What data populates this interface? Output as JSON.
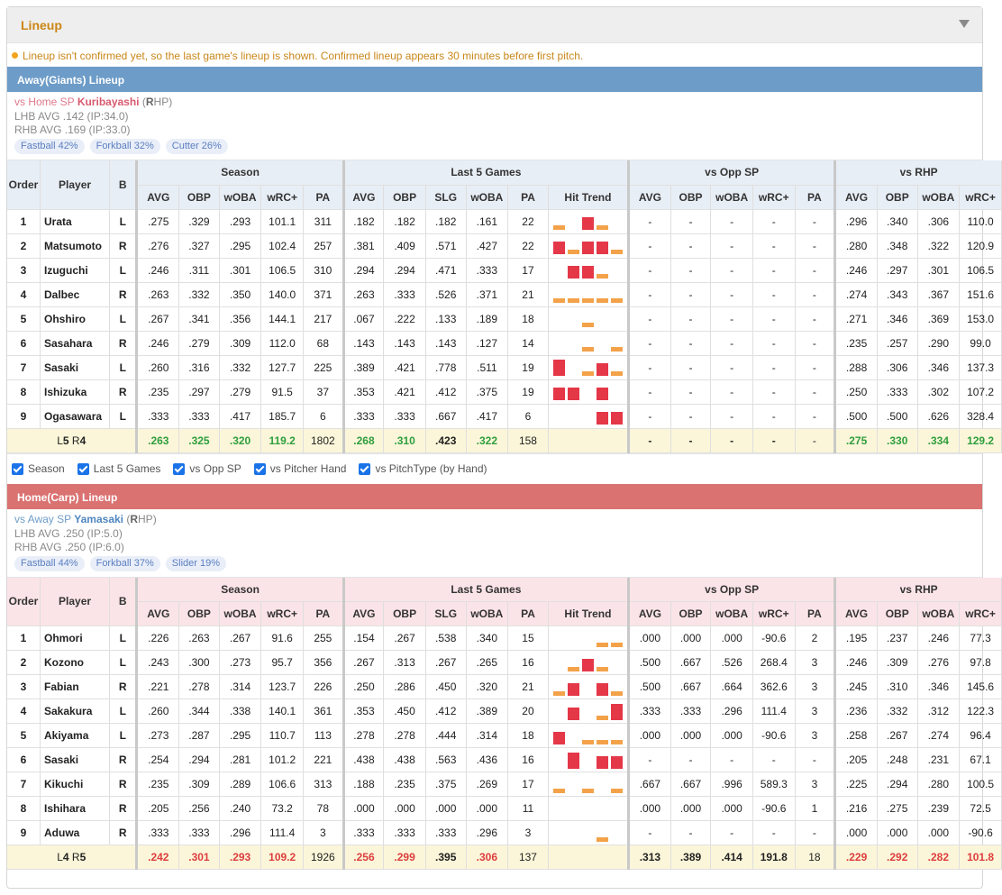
{
  "header": {
    "title": "Lineup"
  },
  "notice": "Lineup isn't confirmed yet, so the last game's lineup is shown. Confirmed lineup appears 30 minutes before first pitch.",
  "columns": {
    "groups": [
      "Season",
      "Last 5 Games",
      "vs Opp SP",
      "vs RHP"
    ],
    "fixed": [
      "Order",
      "Player",
      "B"
    ],
    "season": [
      "AVG",
      "OBP",
      "wOBA",
      "wRC+",
      "PA"
    ],
    "last5": [
      "AVG",
      "OBP",
      "SLG",
      "wOBA",
      "PA",
      "Hit Trend"
    ],
    "vsopp": [
      "AVG",
      "OBP",
      "wOBA",
      "wRC+",
      "PA"
    ],
    "vshand": [
      "AVG",
      "OBP",
      "wOBA",
      "wRC+"
    ]
  },
  "options": [
    "Season",
    "Last 5 Games",
    "vs Opp SP",
    "vs Pitcher Hand",
    "vs PitchType (by Hand)"
  ],
  "colors": {
    "away": "#6d9cc8",
    "home": "#db7272",
    "trend_orange": "#f3a24a",
    "trend_red": "#e43747"
  },
  "away": {
    "bar_title": "Away(Giants) Lineup",
    "sp": {
      "prefix": "vs Home SP",
      "name": "Kuribayashi",
      "hand": "R",
      "hand_suffix": "HP",
      "lhb": "LHB AVG .142 (IP:34.0)",
      "rhb": "RHB AVG .169 (IP:33.0)",
      "pitches": [
        "Fastball 42%",
        "Forkball 32%",
        "Cutter 26%"
      ]
    },
    "rows": [
      {
        "order": "1",
        "name": "Urata",
        "b": "L",
        "season": [
          ".275",
          ".329",
          ".293",
          "101.1",
          "311"
        ],
        "last5": [
          ".182",
          ".182",
          ".182",
          ".161",
          "22"
        ],
        "trend": [
          1,
          0,
          2,
          1,
          0
        ],
        "vsopp": [
          "-",
          "-",
          "-",
          "-",
          "-"
        ],
        "vshand": [
          ".296",
          ".340",
          ".306",
          "110.0"
        ]
      },
      {
        "order": "2",
        "name": "Matsumoto",
        "b": "R",
        "season": [
          ".276",
          ".327",
          ".295",
          "102.4",
          "257"
        ],
        "last5": [
          ".381",
          ".409",
          ".571",
          ".427",
          "22"
        ],
        "trend": [
          2,
          1,
          2,
          2,
          1
        ],
        "vsopp": [
          "-",
          "-",
          "-",
          "-",
          "-"
        ],
        "vshand": [
          ".280",
          ".348",
          ".322",
          "120.9"
        ]
      },
      {
        "order": "3",
        "name": "Izuguchi",
        "b": "L",
        "season": [
          ".246",
          ".311",
          ".301",
          "106.5",
          "310"
        ],
        "last5": [
          ".294",
          ".294",
          ".471",
          ".333",
          "17"
        ],
        "trend": [
          0,
          2,
          2,
          1,
          0
        ],
        "vsopp": [
          "-",
          "-",
          "-",
          "-",
          "-"
        ],
        "vshand": [
          ".246",
          ".297",
          ".301",
          "106.5"
        ]
      },
      {
        "order": "4",
        "name": "Dalbec",
        "b": "R",
        "season": [
          ".263",
          ".332",
          ".350",
          "140.0",
          "371"
        ],
        "last5": [
          ".263",
          ".333",
          ".526",
          ".371",
          "21"
        ],
        "trend": [
          1,
          1,
          1,
          1,
          1
        ],
        "vsopp": [
          "-",
          "-",
          "-",
          "-",
          "-"
        ],
        "vshand": [
          ".274",
          ".343",
          ".367",
          "151.6"
        ]
      },
      {
        "order": "5",
        "name": "Ohshiro",
        "b": "L",
        "season": [
          ".267",
          ".341",
          ".356",
          "144.1",
          "217"
        ],
        "last5": [
          ".067",
          ".222",
          ".133",
          ".189",
          "18"
        ],
        "trend": [
          0,
          0,
          1,
          0,
          0
        ],
        "vsopp": [
          "-",
          "-",
          "-",
          "-",
          "-"
        ],
        "vshand": [
          ".271",
          ".346",
          ".369",
          "153.0"
        ]
      },
      {
        "order": "6",
        "name": "Sasahara",
        "b": "R",
        "season": [
          ".246",
          ".279",
          ".309",
          "112.0",
          "68"
        ],
        "last5": [
          ".143",
          ".143",
          ".143",
          ".127",
          "14"
        ],
        "trend": [
          0,
          0,
          1,
          0,
          1
        ],
        "vsopp": [
          "-",
          "-",
          "-",
          "-",
          "-"
        ],
        "vshand": [
          ".235",
          ".257",
          ".290",
          "99.0"
        ]
      },
      {
        "order": "7",
        "name": "Sasaki",
        "b": "L",
        "season": [
          ".260",
          ".316",
          ".332",
          "127.7",
          "225"
        ],
        "last5": [
          ".389",
          ".421",
          ".778",
          ".511",
          "19"
        ],
        "trend": [
          3,
          0,
          1,
          2,
          1
        ],
        "vsopp": [
          "-",
          "-",
          "-",
          "-",
          "-"
        ],
        "vshand": [
          ".288",
          ".306",
          ".346",
          "137.3"
        ]
      },
      {
        "order": "8",
        "name": "Ishizuka",
        "b": "R",
        "season": [
          ".235",
          ".297",
          ".279",
          "91.5",
          "37"
        ],
        "last5": [
          ".353",
          ".421",
          ".412",
          ".375",
          "19"
        ],
        "trend": [
          2,
          2,
          0,
          2,
          0
        ],
        "vsopp": [
          "-",
          "-",
          "-",
          "-",
          "-"
        ],
        "vshand": [
          ".250",
          ".333",
          ".302",
          "107.2"
        ]
      },
      {
        "order": "9",
        "name": "Ogasawara",
        "b": "L",
        "season": [
          ".333",
          ".333",
          ".417",
          "185.7",
          "6"
        ],
        "last5": [
          ".333",
          ".333",
          ".667",
          ".417",
          "6"
        ],
        "trend": [
          0,
          0,
          0,
          2,
          2
        ],
        "vsopp": [
          "-",
          "-",
          "-",
          "-",
          "-"
        ],
        "vshand": [
          ".500",
          ".500",
          ".626",
          "328.4"
        ]
      }
    ],
    "summary": {
      "l": "5",
      "r": "4",
      "season": [
        ".263",
        ".325",
        ".320",
        "119.2",
        "1802"
      ],
      "last5": [
        ".268",
        ".310",
        ".423",
        ".322",
        "158"
      ],
      "vsopp": [
        "-",
        "-",
        "-",
        "-",
        "-"
      ],
      "vshand": [
        ".275",
        ".330",
        ".334",
        "129.2"
      ]
    }
  },
  "home": {
    "bar_title": "Home(Carp) Lineup",
    "sp": {
      "prefix": "vs Away SP",
      "name": "Yamasaki",
      "hand": "R",
      "hand_suffix": "HP",
      "lhb": "LHB AVG .250 (IP:5.0)",
      "rhb": "RHB AVG .250 (IP:6.0)",
      "pitches": [
        "Fastball 44%",
        "Forkball 37%",
        "Slider 19%"
      ]
    },
    "rows": [
      {
        "order": "1",
        "name": "Ohmori",
        "b": "L",
        "season": [
          ".226",
          ".263",
          ".267",
          "91.6",
          "255"
        ],
        "last5": [
          ".154",
          ".267",
          ".538",
          ".340",
          "15"
        ],
        "trend": [
          0,
          0,
          0,
          1,
          1
        ],
        "vsopp": [
          ".000",
          ".000",
          ".000",
          "-90.6",
          "2"
        ],
        "vshand": [
          ".195",
          ".237",
          ".246",
          "77.3"
        ]
      },
      {
        "order": "2",
        "name": "Kozono",
        "b": "L",
        "season": [
          ".243",
          ".300",
          ".273",
          "95.7",
          "356"
        ],
        "last5": [
          ".267",
          ".313",
          ".267",
          ".265",
          "16"
        ],
        "trend": [
          0,
          1,
          2,
          1,
          0
        ],
        "vsopp": [
          ".500",
          ".667",
          ".526",
          "268.4",
          "3"
        ],
        "vshand": [
          ".246",
          ".309",
          ".276",
          "97.8"
        ]
      },
      {
        "order": "3",
        "name": "Fabian",
        "b": "R",
        "season": [
          ".221",
          ".278",
          ".314",
          "123.7",
          "226"
        ],
        "last5": [
          ".250",
          ".286",
          ".450",
          ".320",
          "21"
        ],
        "trend": [
          1,
          2,
          0,
          2,
          1
        ],
        "vsopp": [
          ".500",
          ".667",
          ".664",
          "362.6",
          "3"
        ],
        "vshand": [
          ".245",
          ".310",
          ".346",
          "145.6"
        ]
      },
      {
        "order": "4",
        "name": "Sakakura",
        "b": "L",
        "season": [
          ".260",
          ".344",
          ".338",
          "140.1",
          "361"
        ],
        "last5": [
          ".353",
          ".450",
          ".412",
          ".389",
          "20"
        ],
        "trend": [
          0,
          2,
          0,
          1,
          3
        ],
        "vsopp": [
          ".333",
          ".333",
          ".296",
          "111.4",
          "3"
        ],
        "vshand": [
          ".236",
          ".332",
          ".312",
          "122.3"
        ]
      },
      {
        "order": "5",
        "name": "Akiyama",
        "b": "L",
        "season": [
          ".273",
          ".287",
          ".295",
          "110.7",
          "113"
        ],
        "last5": [
          ".278",
          ".278",
          ".444",
          ".314",
          "18"
        ],
        "trend": [
          2,
          0,
          1,
          1,
          1
        ],
        "vsopp": [
          ".000",
          ".000",
          ".000",
          "-90.6",
          "3"
        ],
        "vshand": [
          ".258",
          ".267",
          ".274",
          "96.4"
        ]
      },
      {
        "order": "6",
        "name": "Sasaki",
        "b": "R",
        "season": [
          ".254",
          ".294",
          ".281",
          "101.2",
          "221"
        ],
        "last5": [
          ".438",
          ".438",
          ".563",
          ".436",
          "16"
        ],
        "trend": [
          0,
          3,
          0,
          2,
          2
        ],
        "vsopp": [
          "-",
          "-",
          "-",
          "-",
          "-"
        ],
        "vshand": [
          ".205",
          ".248",
          ".231",
          "67.1"
        ]
      },
      {
        "order": "7",
        "name": "Kikuchi",
        "b": "R",
        "season": [
          ".235",
          ".309",
          ".289",
          "106.6",
          "313"
        ],
        "last5": [
          ".188",
          ".235",
          ".375",
          ".269",
          "17"
        ],
        "trend": [
          1,
          0,
          1,
          0,
          1
        ],
        "vsopp": [
          ".667",
          ".667",
          ".996",
          "589.3",
          "3"
        ],
        "vshand": [
          ".225",
          ".294",
          ".280",
          "100.5"
        ]
      },
      {
        "order": "8",
        "name": "Ishihara",
        "b": "R",
        "season": [
          ".205",
          ".256",
          ".240",
          "73.2",
          "78"
        ],
        "last5": [
          ".000",
          ".000",
          ".000",
          ".000",
          "11"
        ],
        "trend": [
          0,
          0,
          0,
          0,
          0
        ],
        "vsopp": [
          ".000",
          ".000",
          ".000",
          "-90.6",
          "1"
        ],
        "vshand": [
          ".216",
          ".275",
          ".239",
          "72.5"
        ]
      },
      {
        "order": "9",
        "name": "Aduwa",
        "b": "R",
        "season": [
          ".333",
          ".333",
          ".296",
          "111.4",
          "3"
        ],
        "last5": [
          ".333",
          ".333",
          ".333",
          ".296",
          "3"
        ],
        "trend": [
          0,
          0,
          0,
          1,
          0
        ],
        "vsopp": [
          "-",
          "-",
          "-",
          "-",
          "-"
        ],
        "vshand": [
          ".000",
          ".000",
          ".000",
          "-90.6"
        ]
      }
    ],
    "summary": {
      "l": "4",
      "r": "5",
      "season": [
        ".242",
        ".301",
        ".293",
        "109.2",
        "1926"
      ],
      "last5": [
        ".256",
        ".299",
        ".395",
        ".306",
        "137"
      ],
      "vsopp": [
        ".313",
        ".389",
        ".414",
        "191.8",
        "18"
      ],
      "vshand": [
        ".229",
        ".292",
        ".282",
        "101.8"
      ]
    }
  }
}
